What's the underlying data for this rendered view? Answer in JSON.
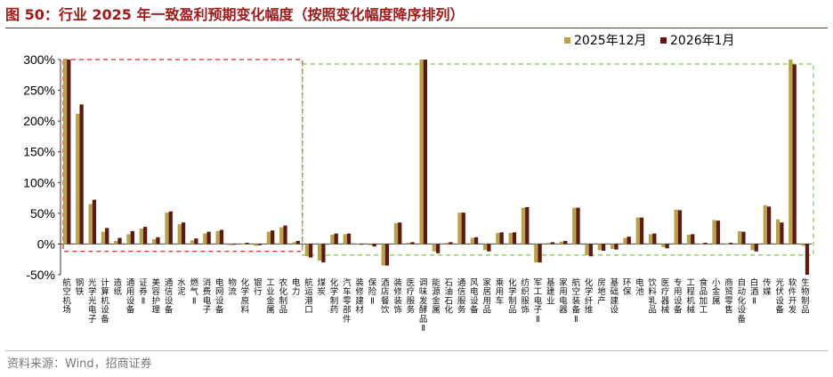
{
  "header": {
    "title": "图 50：行业 2025 年一致盈利预期变化幅度（按照变化幅度降序排列）"
  },
  "footer": {
    "source": "资料来源：Wind，招商证券"
  },
  "chart_data": {
    "type": "bar",
    "title": "",
    "xlabel": "",
    "ylabel": "",
    "ylim": [
      -50,
      300
    ],
    "yticks": [
      "300%",
      "250%",
      "200%",
      "150%",
      "100%",
      "50%",
      "0%",
      "-50%"
    ],
    "grid": false,
    "legend_position": "top-right",
    "colors": {
      "2025年12月": "#b8a24a",
      "2026年1月": "#5c1a12"
    },
    "categories": [
      "航空机场",
      "钢铁",
      "光学光电子",
      "计算机设备",
      "造纸",
      "通用设备",
      "证券Ⅱ",
      "美容护理",
      "通信设备",
      "水泥",
      "燃气Ⅱ",
      "消费电子",
      "电网设备",
      "物流",
      "化学原料",
      "银行",
      "工业金属",
      "农化制品",
      "电力",
      "航运港口",
      "煤炭",
      "化学制药",
      "汽车零部件",
      "装修建材",
      "保险Ⅱ",
      "酒店餐饮",
      "装修装饰",
      "医疗服务",
      "调味发酵品Ⅱ",
      "能源金属",
      "石油石化",
      "通信服务",
      "风电设备",
      "家居用品",
      "乘用车",
      "化学制品",
      "纺织服饰",
      "军工电子Ⅱ",
      "基建业",
      "家用电器",
      "航空装备Ⅱ",
      "化学纤维",
      "房地产",
      "基础建设",
      "环保",
      "电池",
      "饮料乳品",
      "医疗器械",
      "专用设备",
      "工程机械",
      "食品加工",
      "小金属",
      "商贸零售",
      "自动化设备",
      "白酒Ⅱ",
      "传媒",
      "光伏设备",
      "软件开发",
      "生物制品"
    ],
    "series": [
      {
        "name": "2025年12月",
        "values": [
          300,
          212,
          65,
          20,
          5,
          16,
          25,
          8,
          51,
          32,
          6,
          17,
          21,
          -2,
          1,
          -3,
          20,
          27,
          3,
          -20,
          -27,
          15,
          16,
          -1,
          -2,
          -35,
          34,
          2,
          300,
          -12,
          2,
          51,
          10,
          -10,
          18,
          18,
          59,
          -30,
          2,
          4,
          59,
          -18,
          -10,
          -8,
          10,
          43,
          16,
          -5,
          56,
          15,
          1,
          39,
          1,
          21,
          -10,
          63,
          40,
          300,
          -3
        ]
      },
      {
        "name": "2026年1月",
        "values": [
          300,
          227,
          72,
          26,
          10,
          21,
          28,
          11,
          53,
          35,
          9,
          20,
          23,
          -1,
          2,
          -2,
          22,
          30,
          5,
          -22,
          -30,
          17,
          17,
          -1,
          -4,
          -35,
          35,
          3,
          300,
          -15,
          3,
          51,
          11,
          -12,
          19,
          19,
          60,
          -30,
          3,
          5,
          59,
          -20,
          -11,
          -9,
          12,
          43,
          17,
          -7,
          55,
          16,
          2,
          38,
          2,
          20,
          -12,
          61,
          35,
          292,
          -50
        ]
      }
    ]
  }
}
